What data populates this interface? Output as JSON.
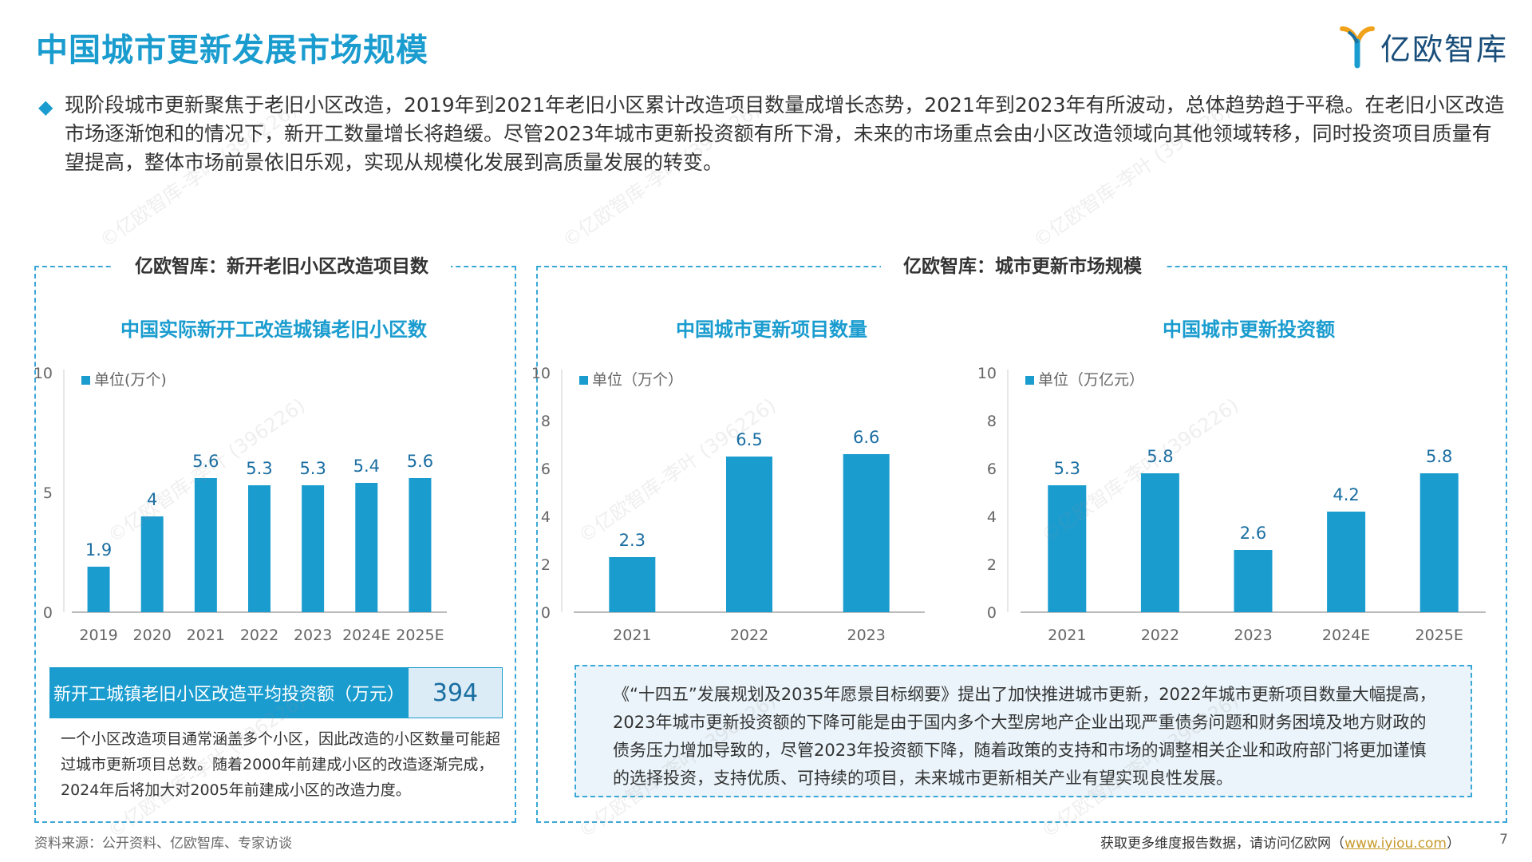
{
  "page": {
    "title": "中国城市更新发展市场规模",
    "logo_text": "亿欧智库",
    "summary": "现阶段城市更新聚焦于老旧小区改造，2019年到2021年老旧小区累计改造项目数量成增长态势，2021年到2023年有所波动，总体趋势趋于平稳。在老旧小区改造市场逐渐饱和的情况下，新开工数量增长将趋缓。尽管2023年城市更新投资额有所下滑，未来的市场重点会由小区改造领域向其他领域转移，同时投资项目质量有望提高，整体市场前景依旧乐观，实现从规模化发展到高质量发展的转变。",
    "watermark": "©亿欧智库-李叶 (396226)",
    "page_number": "7"
  },
  "left_panel": {
    "header": "亿欧智库：新开老旧小区改造项目数",
    "avg_label": "新开工城镇老旧小区改造平均投资额（万元）",
    "avg_value": "394",
    "note": "一个小区改造项目通常涵盖多个小区，因此改造的小区数量可能超过城市更新项目总数。随着2000年前建成小区的改造逐渐完成，2024年后将加大对2005年前建成小区的改造力度。"
  },
  "right_panel": {
    "header": "亿欧智库：城市更新市场规模",
    "note": "《“十四五”发展规划及2035年愿景目标纲要》提出了加快推进城市更新，2022年城市更新项目数量大幅提高，2023年城市更新投资额的下降可能是由于国内多个大型房地产企业出现严重债务问题和财务困境及地方财政的债务压力增加导致的，尽管2023年投资额下降，随着政策的支持和市场的调整相关企业和政府部门将更加谨慎的选择投资，支持优质、可持续的项目，未来城市更新相关产业有望实现良性发展。"
  },
  "footer": {
    "source": "资料来源：公开资料、亿欧智库、专家访谈",
    "cta": "获取更多维度报告数据，请访问亿欧网（",
    "link": "www.iyiou.com",
    "cta_end": "）"
  },
  "colors": {
    "accent": "#1a9ccf",
    "bar": "#1a9ccf",
    "dark_blue": "#1a4e7a"
  },
  "chart_data": [
    {
      "type": "bar",
      "title": "中国实际新开工改造城镇老旧小区数",
      "legend": "单位(万个)",
      "categories": [
        "2019",
        "2020",
        "2021",
        "2022",
        "2023",
        "2024E",
        "2025E"
      ],
      "values": [
        1.9,
        4,
        5.6,
        5.3,
        5.3,
        5.4,
        5.6
      ],
      "labels": [
        "1.9",
        "4",
        "5.6",
        "5.3",
        "5.3",
        "5.4",
        "5.6"
      ],
      "yticks": [
        "0",
        "5",
        "10"
      ],
      "ylim": [
        0,
        10
      ],
      "grid": false
    },
    {
      "type": "bar",
      "title": "中国城市更新项目数量",
      "legend": "单位（万个）",
      "categories": [
        "2021",
        "2022",
        "2023"
      ],
      "values": [
        2.3,
        6.5,
        6.6
      ],
      "labels": [
        "2.3",
        "6.5",
        "6.6"
      ],
      "yticks": [
        "0",
        "2",
        "4",
        "6",
        "8",
        "10"
      ],
      "ylim": [
        0,
        10
      ],
      "grid": false
    },
    {
      "type": "bar",
      "title": "中国城市更新投资额",
      "legend": "单位（万亿元）",
      "categories": [
        "2021",
        "2022",
        "2023",
        "2024E",
        "2025E"
      ],
      "values": [
        5.3,
        5.8,
        2.6,
        4.2,
        5.8
      ],
      "labels": [
        "5.3",
        "5.8",
        "2.6",
        "4.2",
        "5.8"
      ],
      "yticks": [
        "0",
        "2",
        "4",
        "6",
        "8",
        "10"
      ],
      "ylim": [
        0,
        10
      ],
      "grid": false
    }
  ]
}
